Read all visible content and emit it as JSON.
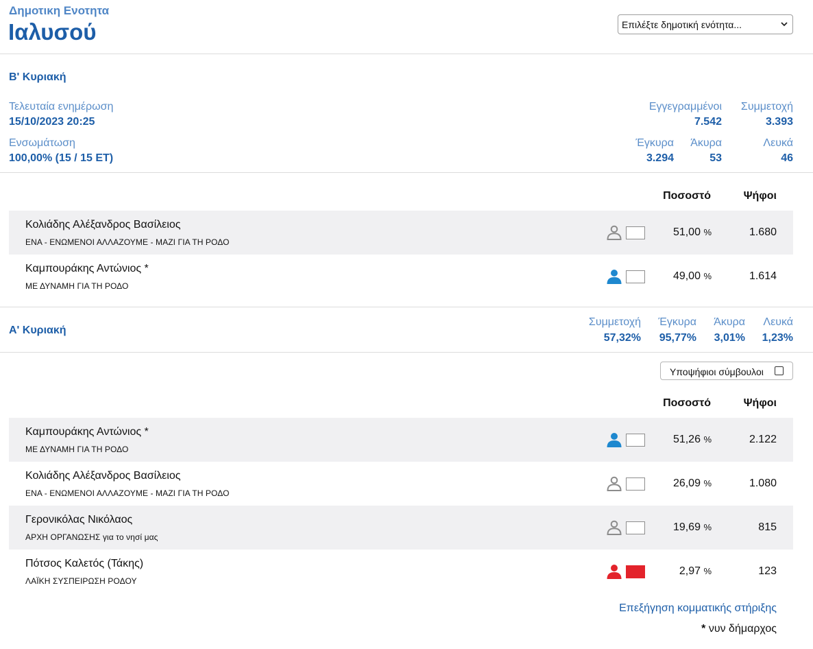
{
  "header": {
    "kicker": "Δημοτικη Ενοτητα",
    "title": "Ιαλυσού",
    "select_value": "Επιλέξτε δημοτική ενότητα..."
  },
  "round2": {
    "title": "Β' Κυριακή",
    "last_update_label": "Τελευταία ενημέρωση",
    "last_update_value": "15/10/2023 20:25",
    "incorporation_label": "Ενσωμάτωση",
    "incorporation_value": "100,00% (15 / 15 ΕΤ)",
    "registered_label": "Εγγεγραμμένοι",
    "registered_value": "7.542",
    "turnout_label": "Συμμετοχή",
    "turnout_value": "3.393",
    "valid_label": "Έγκυρα",
    "valid_value": "3.294",
    "invalid_label": "Άκυρα",
    "invalid_value": "53",
    "blank_label": "Λευκά",
    "blank_value": "46",
    "col_percent": "Ποσοστό",
    "col_votes": "Ψήφοι",
    "candidates": [
      {
        "name": "Κολιάδης Αλέξανδρος Βασίλειος",
        "party": "ΕΝΑ - ΕΝΩΜΕΝΟΙ ΑΛΛΑΖΟΥΜΕ - ΜΑΖΙ ΓΙΑ ΤΗ ΡΟΔΟ",
        "percent": "51,00",
        "unit": "%",
        "votes": "1.680",
        "icon": "person-outline-icon",
        "color": "#ffffff"
      },
      {
        "name": "Καμπουράκης Αντώνιος *",
        "party": "ΜΕ ΔΥΝΑΜΗ ΓΙΑ ΤΗ ΡΟΔΟ",
        "percent": "49,00",
        "unit": "%",
        "votes": "1.614",
        "icon": "person-filled-icon",
        "color": "#ffffff"
      }
    ]
  },
  "round1": {
    "title": "Α' Κυριακή",
    "turnout_label": "Συμμετοχή",
    "turnout_value": "57,32%",
    "valid_label": "Έγκυρα",
    "valid_value": "95,77%",
    "invalid_label": "Άκυρα",
    "invalid_value": "3,01%",
    "blank_label": "Λευκά",
    "blank_value": "1,23%",
    "toggle_label": "Υποψήφιοι σύμβουλοι",
    "col_percent": "Ποσοστό",
    "col_votes": "Ψήφοι",
    "candidates": [
      {
        "name": "Καμπουράκης Αντώνιος *",
        "party": "ΜΕ ΔΥΝΑΜΗ ΓΙΑ ΤΗ ΡΟΔΟ",
        "percent": "51,26",
        "unit": "%",
        "votes": "2.122",
        "icon": "person-filled-icon",
        "color": "#ffffff"
      },
      {
        "name": "Κολιάδης Αλέξανδρος Βασίλειος",
        "party": "ΕΝΑ - ΕΝΩΜΕΝΟΙ ΑΛΛΑΖΟΥΜΕ - ΜΑΖΙ ΓΙΑ ΤΗ ΡΟΔΟ",
        "percent": "26,09",
        "unit": "%",
        "votes": "1.080",
        "icon": "person-outline-icon",
        "color": "#ffffff"
      },
      {
        "name": "Γερονικόλας Νικόλαος",
        "party": "ΑΡΧΗ ΟΡΓΑΝΩΣΗΣ για το νησί μας",
        "percent": "19,69",
        "unit": "%",
        "votes": "815",
        "icon": "person-outline-icon",
        "color": "#ffffff"
      },
      {
        "name": "Πότσος Καλετός (Τάκης)",
        "party": "ΛΑΪΚΗ ΣΥΣΠΕΙΡΩΣΗ ΡΟΔΟΥ",
        "percent": "2,97",
        "unit": "%",
        "votes": "123",
        "icon": "person-filled-icon",
        "color": "#e3232b"
      }
    ]
  },
  "footer": {
    "link": "Επεξήγηση κομματικής στήριξης",
    "note_star": "*",
    "note_text": " νυν δήμαρχος"
  },
  "colors": {
    "accent": "#1d5ea8",
    "label": "#5b8ec9",
    "incumbent_icon": "#1e88cf",
    "outline_icon": "#8c8c8c",
    "kke_red": "#e3232b",
    "row_shade": "#f0f0f2"
  }
}
